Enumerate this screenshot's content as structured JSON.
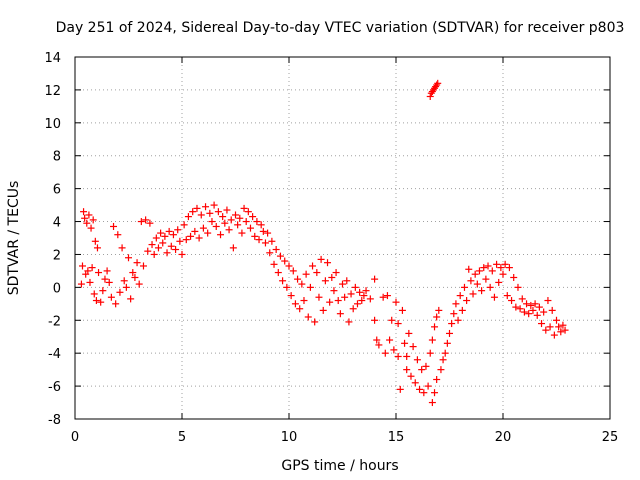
{
  "chart_data": {
    "type": "scatter",
    "title": "Day 251 of 2024, Sidereal Day-to-day VTEC variation (SDTVAR) for receiver p803",
    "xlabel": "GPS time / hours",
    "ylabel": "SDTVAR / TECUs",
    "xlim": [
      0,
      25
    ],
    "ylim": [
      -8,
      14
    ],
    "xticks": [
      0,
      5,
      10,
      15,
      20,
      25
    ],
    "yticks": [
      -8,
      -6,
      -4,
      -2,
      0,
      2,
      4,
      6,
      8,
      10,
      12,
      14
    ],
    "grid": true,
    "marker": "+",
    "colors": {
      "points": "#ff0000",
      "grid": "#a0a0a0",
      "axes": "#000000"
    },
    "series": [
      {
        "name": "SDTVAR",
        "points": [
          [
            0.3,
            0.2
          ],
          [
            0.35,
            1.3
          ],
          [
            0.4,
            4.6
          ],
          [
            0.45,
            4.2
          ],
          [
            0.5,
            0.8
          ],
          [
            0.55,
            3.9
          ],
          [
            0.6,
            1.0
          ],
          [
            0.65,
            4.4
          ],
          [
            0.7,
            0.3
          ],
          [
            0.75,
            3.6
          ],
          [
            0.8,
            1.2
          ],
          [
            0.85,
            4.1
          ],
          [
            0.9,
            -0.4
          ],
          [
            0.95,
            2.8
          ],
          [
            1.0,
            -0.8
          ],
          [
            1.05,
            2.4
          ],
          [
            1.1,
            0.9
          ],
          [
            1.2,
            -0.9
          ],
          [
            1.3,
            -0.2
          ],
          [
            1.4,
            0.5
          ],
          [
            1.5,
            1.0
          ],
          [
            1.6,
            0.3
          ],
          [
            1.7,
            -0.6
          ],
          [
            1.8,
            3.7
          ],
          [
            1.9,
            -1.0
          ],
          [
            2.0,
            3.2
          ],
          [
            2.1,
            -0.3
          ],
          [
            2.2,
            2.4
          ],
          [
            2.3,
            0.4
          ],
          [
            2.4,
            0.0
          ],
          [
            2.5,
            1.8
          ],
          [
            2.6,
            -0.7
          ],
          [
            2.7,
            0.9
          ],
          [
            2.8,
            0.6
          ],
          [
            2.9,
            1.5
          ],
          [
            3.0,
            0.2
          ],
          [
            3.1,
            4.0
          ],
          [
            3.2,
            1.3
          ],
          [
            3.3,
            4.1
          ],
          [
            3.4,
            2.2
          ],
          [
            3.5,
            3.9
          ],
          [
            3.6,
            2.6
          ],
          [
            3.7,
            2.0
          ],
          [
            3.8,
            3.0
          ],
          [
            3.9,
            2.4
          ],
          [
            4.0,
            3.3
          ],
          [
            4.1,
            2.7
          ],
          [
            4.2,
            3.1
          ],
          [
            4.3,
            2.1
          ],
          [
            4.4,
            3.4
          ],
          [
            4.5,
            2.5
          ],
          [
            4.6,
            3.2
          ],
          [
            4.7,
            2.3
          ],
          [
            4.8,
            3.5
          ],
          [
            4.9,
            2.8
          ],
          [
            5.0,
            2.0
          ],
          [
            5.1,
            3.8
          ],
          [
            5.2,
            2.9
          ],
          [
            5.3,
            4.3
          ],
          [
            5.4,
            3.1
          ],
          [
            5.5,
            4.6
          ],
          [
            5.6,
            3.4
          ],
          [
            5.7,
            4.8
          ],
          [
            5.8,
            3.0
          ],
          [
            5.9,
            4.4
          ],
          [
            6.0,
            3.6
          ],
          [
            6.1,
            4.9
          ],
          [
            6.2,
            3.3
          ],
          [
            6.3,
            4.5
          ],
          [
            6.4,
            4.0
          ],
          [
            6.5,
            5.0
          ],
          [
            6.6,
            3.7
          ],
          [
            6.7,
            4.6
          ],
          [
            6.8,
            3.2
          ],
          [
            6.9,
            4.3
          ],
          [
            7.0,
            3.9
          ],
          [
            7.1,
            4.7
          ],
          [
            7.2,
            3.5
          ],
          [
            7.3,
            4.1
          ],
          [
            7.4,
            2.4
          ],
          [
            7.5,
            4.4
          ],
          [
            7.6,
            3.8
          ],
          [
            7.7,
            4.2
          ],
          [
            7.8,
            3.3
          ],
          [
            7.9,
            4.8
          ],
          [
            8.0,
            4.0
          ],
          [
            8.1,
            4.6
          ],
          [
            8.2,
            3.6
          ],
          [
            8.3,
            4.3
          ],
          [
            8.4,
            3.1
          ],
          [
            8.5,
            4.0
          ],
          [
            8.6,
            2.9
          ],
          [
            8.7,
            3.8
          ],
          [
            8.8,
            3.4
          ],
          [
            8.9,
            2.7
          ],
          [
            9.0,
            3.3
          ],
          [
            9.1,
            2.1
          ],
          [
            9.2,
            2.8
          ],
          [
            9.3,
            1.4
          ],
          [
            9.4,
            2.3
          ],
          [
            9.5,
            0.9
          ],
          [
            9.6,
            1.9
          ],
          [
            9.7,
            0.4
          ],
          [
            9.8,
            1.6
          ],
          [
            9.9,
            0.0
          ],
          [
            10.0,
            1.3
          ],
          [
            10.1,
            -0.5
          ],
          [
            10.2,
            1.0
          ],
          [
            10.3,
            -1.0
          ],
          [
            10.4,
            0.5
          ],
          [
            10.5,
            -1.3
          ],
          [
            10.6,
            0.2
          ],
          [
            10.7,
            -0.8
          ],
          [
            10.8,
            0.8
          ],
          [
            10.9,
            -1.8
          ],
          [
            11.0,
            0.0
          ],
          [
            11.1,
            1.3
          ],
          [
            11.2,
            -2.1
          ],
          [
            11.3,
            0.9
          ],
          [
            11.4,
            -0.6
          ],
          [
            11.5,
            1.7
          ],
          [
            11.6,
            -1.4
          ],
          [
            11.7,
            0.4
          ],
          [
            11.8,
            1.5
          ],
          [
            11.9,
            -0.9
          ],
          [
            12.0,
            0.6
          ],
          [
            12.1,
            -0.2
          ],
          [
            12.2,
            0.9
          ],
          [
            12.3,
            -0.8
          ],
          [
            12.4,
            -1.6
          ],
          [
            12.5,
            0.2
          ],
          [
            12.6,
            -0.6
          ],
          [
            12.7,
            0.4
          ],
          [
            12.8,
            -2.1
          ],
          [
            12.9,
            -0.4
          ],
          [
            13.0,
            -1.3
          ],
          [
            13.1,
            0.0
          ],
          [
            13.2,
            -1.0
          ],
          [
            13.3,
            -0.3
          ],
          [
            13.4,
            -0.8
          ],
          [
            13.5,
            -0.5
          ],
          [
            13.6,
            -0.2
          ],
          [
            13.8,
            -0.7
          ],
          [
            14.0,
            0.5
          ],
          [
            14.0,
            -2.0
          ],
          [
            14.1,
            -3.2
          ],
          [
            14.2,
            -3.5
          ],
          [
            14.4,
            -0.6
          ],
          [
            14.5,
            -4.0
          ],
          [
            14.6,
            -0.5
          ],
          [
            14.7,
            -3.2
          ],
          [
            14.8,
            -2.0
          ],
          [
            14.9,
            -3.8
          ],
          [
            15.0,
            -0.9
          ],
          [
            15.1,
            -2.2
          ],
          [
            15.1,
            -4.2
          ],
          [
            15.2,
            -6.2
          ],
          [
            15.3,
            -1.4
          ],
          [
            15.4,
            -3.4
          ],
          [
            15.5,
            -4.2
          ],
          [
            15.5,
            -5.0
          ],
          [
            15.6,
            -2.8
          ],
          [
            15.7,
            -5.4
          ],
          [
            15.8,
            -3.6
          ],
          [
            15.9,
            -5.8
          ],
          [
            16.0,
            -4.4
          ],
          [
            16.1,
            -6.2
          ],
          [
            16.2,
            -5.0
          ],
          [
            16.3,
            -6.4
          ],
          [
            16.4,
            -4.8
          ],
          [
            16.5,
            -6.0
          ],
          [
            16.6,
            -4.0
          ],
          [
            16.7,
            -7.0
          ],
          [
            16.7,
            -3.2
          ],
          [
            16.8,
            -6.4
          ],
          [
            16.8,
            -2.4
          ],
          [
            16.9,
            -5.6
          ],
          [
            16.9,
            -1.8
          ],
          [
            17.0,
            -1.4
          ],
          [
            17.1,
            -5.0
          ],
          [
            17.2,
            -4.4
          ],
          [
            17.3,
            -4.0
          ],
          [
            17.4,
            -3.4
          ],
          [
            17.5,
            -2.8
          ],
          [
            17.6,
            -2.2
          ],
          [
            17.7,
            -1.6
          ],
          [
            17.8,
            -1.0
          ],
          [
            17.9,
            -2.0
          ],
          [
            18.0,
            -0.5
          ],
          [
            18.1,
            -1.4
          ],
          [
            18.2,
            0.0
          ],
          [
            18.3,
            -0.8
          ],
          [
            18.4,
            1.1
          ],
          [
            18.5,
            0.4
          ],
          [
            18.6,
            -0.4
          ],
          [
            18.7,
            0.8
          ],
          [
            18.8,
            0.2
          ],
          [
            18.9,
            1.0
          ],
          [
            19.0,
            -0.2
          ],
          [
            19.1,
            1.2
          ],
          [
            19.2,
            0.5
          ],
          [
            19.3,
            1.3
          ],
          [
            19.4,
            0.0
          ],
          [
            19.5,
            1.0
          ],
          [
            19.6,
            -0.6
          ],
          [
            19.7,
            1.4
          ],
          [
            19.8,
            0.3
          ],
          [
            19.9,
            1.2
          ],
          [
            20.0,
            0.8
          ],
          [
            20.1,
            1.4
          ],
          [
            20.2,
            -0.5
          ],
          [
            20.3,
            1.2
          ],
          [
            20.4,
            -0.8
          ],
          [
            20.5,
            0.6
          ],
          [
            20.6,
            -1.2
          ],
          [
            20.7,
            0.0
          ],
          [
            20.8,
            -1.3
          ],
          [
            20.9,
            -0.7
          ],
          [
            21.0,
            -1.5
          ],
          [
            21.1,
            -1.0
          ],
          [
            21.2,
            -1.6
          ],
          [
            21.3,
            -1.1
          ],
          [
            21.4,
            -1.4
          ],
          [
            21.5,
            -1.0
          ],
          [
            21.6,
            -1.7
          ],
          [
            21.7,
            -1.2
          ],
          [
            21.8,
            -2.2
          ],
          [
            21.9,
            -1.5
          ],
          [
            22.0,
            -2.6
          ],
          [
            22.1,
            -0.8
          ],
          [
            22.2,
            -2.4
          ],
          [
            22.3,
            -1.4
          ],
          [
            22.4,
            -2.9
          ],
          [
            22.5,
            -2.0
          ],
          [
            22.6,
            -2.4
          ],
          [
            22.7,
            -2.7
          ],
          [
            22.8,
            -2.3
          ],
          [
            22.9,
            -2.6
          ],
          [
            16.6,
            11.6
          ],
          [
            16.65,
            11.8
          ],
          [
            16.7,
            11.9
          ],
          [
            16.75,
            12.0
          ],
          [
            16.8,
            12.1
          ],
          [
            16.85,
            12.2
          ],
          [
            16.9,
            12.3
          ],
          [
            16.95,
            12.4
          ]
        ]
      }
    ]
  }
}
